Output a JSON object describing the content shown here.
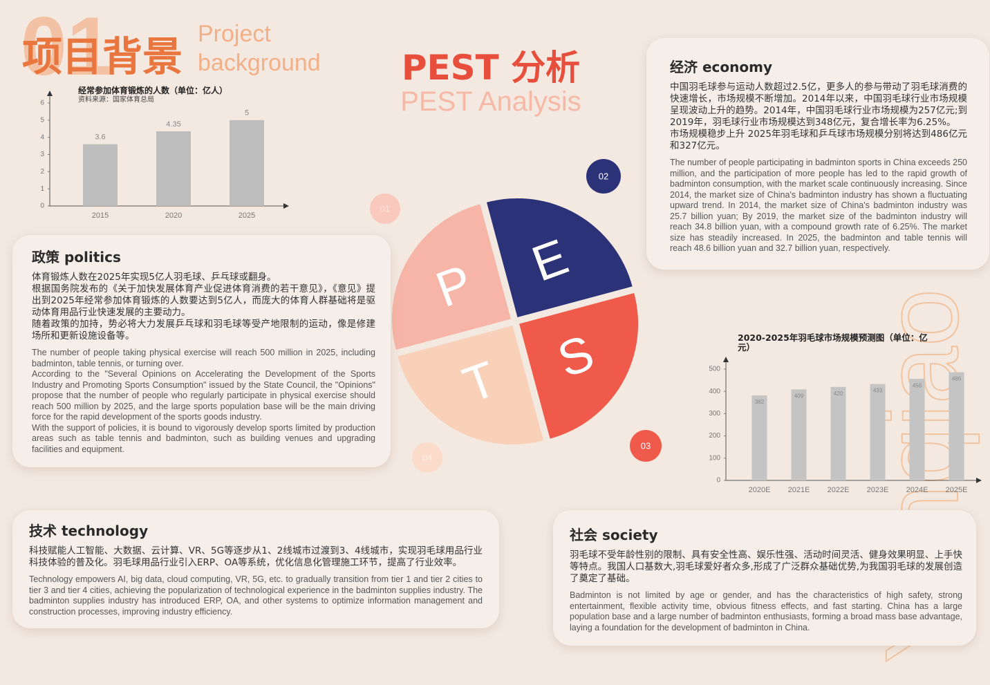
{
  "header": {
    "number": "01",
    "title": "项目背景",
    "subtitle_line1": "Project",
    "subtitle_line2": "background"
  },
  "center": {
    "title": "PEST 分析",
    "subtitle": "PEST Analysis",
    "letters": [
      "P",
      "E",
      "S",
      "T"
    ],
    "badges": [
      "01",
      "02",
      "03",
      "04"
    ]
  },
  "watermark": "Yunqiao",
  "chart_data": [
    {
      "type": "bar",
      "title": "经常参加体育锻炼的人数（单位：亿人）",
      "subtitle": "资料来源：国家体育总局",
      "categories": [
        "2015",
        "2020",
        "2025"
      ],
      "values": [
        3.6,
        4.35,
        5
      ],
      "color": "#bdbdbd",
      "ylim": [
        0,
        6
      ],
      "yticks": [
        0,
        1,
        2,
        3,
        4,
        5,
        6
      ]
    },
    {
      "type": "bar",
      "title": "2020-2025年羽毛球市场规模预测图（单位：亿元）",
      "categories": [
        "2020E",
        "2021E",
        "2022E",
        "2023E",
        "2024E",
        "2025E"
      ],
      "values": [
        382,
        409,
        420,
        433,
        456,
        486
      ],
      "color": "#c4c4c4",
      "ylim": [
        0,
        500
      ],
      "yticks": [
        0,
        100,
        200,
        300,
        400,
        500
      ]
    }
  ],
  "sections": {
    "politics": {
      "title": "政策 politics",
      "zh": [
        "体育锻炼人数在2025年实现5亿人羽毛球、乒乓球或翻身。",
        "根据国务院发布的《关于加快发展体育产业促进体育消费的若干意见》，《意见》提出到2025年经常参加体育锻炼的人数要达到5亿人，而庞大的体育人群基础将是驱动体育用品行业快速发展的主要动力。",
        "随着政策的加持，势必将大力发展乒乓球和羽毛球等受产地限制的运动，像是修建场所和更新设施设备等。"
      ],
      "en": [
        "The number of people taking physical exercise will reach 500 million in 2025, including badminton, table tennis, or turning over.",
        "According to the \"Several Opinions on Accelerating the Development of the Sports Industry and Promoting Sports Consumption\" issued by the State Council, the \"Opinions\" propose that the number of people who regularly participate in physical exercise should reach 500 million by 2025, and the large sports population base will be the main driving force for the rapid development of the sports goods industry.",
        "With the support of policies, it is bound to vigorously develop sports limited by production areas such as table tennis and badminton, such as building venues and upgrading facilities and equipment."
      ]
    },
    "economy": {
      "title": "经济 economy",
      "zh": [
        "中国羽毛球参与运动人数超过2.5亿，更多人的参与带动了羽毛球消费的快速增长，市场规模不断增加。2014年以来，中国羽毛球行业市场规模呈现波动上升的趋势。2014年，中国羽毛球行业市场规模为257亿元;到2019年，羽毛球行业市场规模达到348亿元，复合增长率为6.25%。",
        "市场规模稳步上升 2025年羽毛球和乒乓球市场规模分别将达到486亿元和327亿元。"
      ],
      "en": [
        "The number of people participating in badminton sports in China exceeds 250 million, and the participation of more people has led to the rapid growth of badminton consumption, with the market scale continuously increasing. Since 2014, the market size of China's badminton industry has shown a fluctuating upward trend. In 2014, the market size of China's badminton industry was 25.7 billion yuan; By 2019, the market size of the badminton industry will reach 34.8 billion yuan, with a compound growth rate of 6.25%. The market size has steadily increased. In 2025, the badminton and table tennis will reach 48.6 billion yuan and 32.7 billion yuan, respectively."
      ]
    },
    "technology": {
      "title": "技术 technology",
      "zh": [
        "科技赋能人工智能、大数据、云计算、VR、5G等逐步从1、2线城市过渡到3、4线城市，实现羽毛球用品行业科技体验的普及化。羽毛球用品行业引入ERP、OA等系统，优化信息化管理施工环节，提高了行业效率。"
      ],
      "en": [
        "Technology empowers AI, big data, cloud computing, VR, 5G, etc. to gradually transition from tier 1 and tier 2 cities to tier 3 and tier 4 cities, achieving the popularization of technological experience in the badminton supplies industry. The badminton supplies industry has introduced ERP, OA, and other systems to optimize information management and construction processes, improving industry efficiency."
      ]
    },
    "society": {
      "title": "社会 society",
      "zh": [
        "羽毛球不受年龄性别的限制、具有安全性高、娱乐性强、活动时间灵活、健身效果明显、上手快等特点。我国人口基数大,羽毛球爱好者众多,形成了广泛群众基础优势,为我国羽毛球的发展创造了奠定了基础。"
      ],
      "en": [
        "Badminton is not limited by age or gender, and has the characteristics of high safety, strong entertainment, flexible activity time, obvious fitness effects, and fast starting. China has a large population base and a large number of badminton enthusiasts, forming a broad mass base advantage, laying a foundation for the development of badminton in China."
      ]
    }
  }
}
